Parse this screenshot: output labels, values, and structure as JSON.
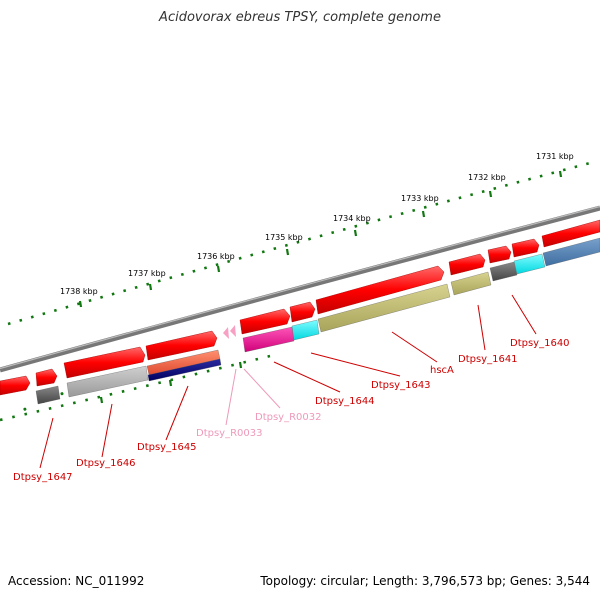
{
  "title": "Acidovorax ebreus TPSY, complete genome",
  "footer": {
    "accession": "Accession: NC_011992",
    "summary": "Topology: circular; Length: 3,796,573 bp; Genes: 3,544"
  },
  "ticks": [
    "1738 kbp",
    "1737 kbp",
    "1736 kbp",
    "1735 kbp",
    "1734 kbp",
    "1733 kbp",
    "1732 kbp",
    "1731 kbp"
  ],
  "gene_labels": [
    "Dtpsy_1647",
    "Dtpsy_1646",
    "Dtpsy_1645",
    "Dtpsy_R0033",
    "Dtpsy_R0032",
    "Dtpsy_1644",
    "Dtpsy_1643",
    "hscA",
    "Dtpsy_1641",
    "Dtpsy_1640"
  ],
  "colors": {
    "gene_red": "#ff0000",
    "label_red": "#cc0000",
    "label_pink": "#ee99bb",
    "tick_green": "#117711",
    "backbone": "#777777"
  }
}
